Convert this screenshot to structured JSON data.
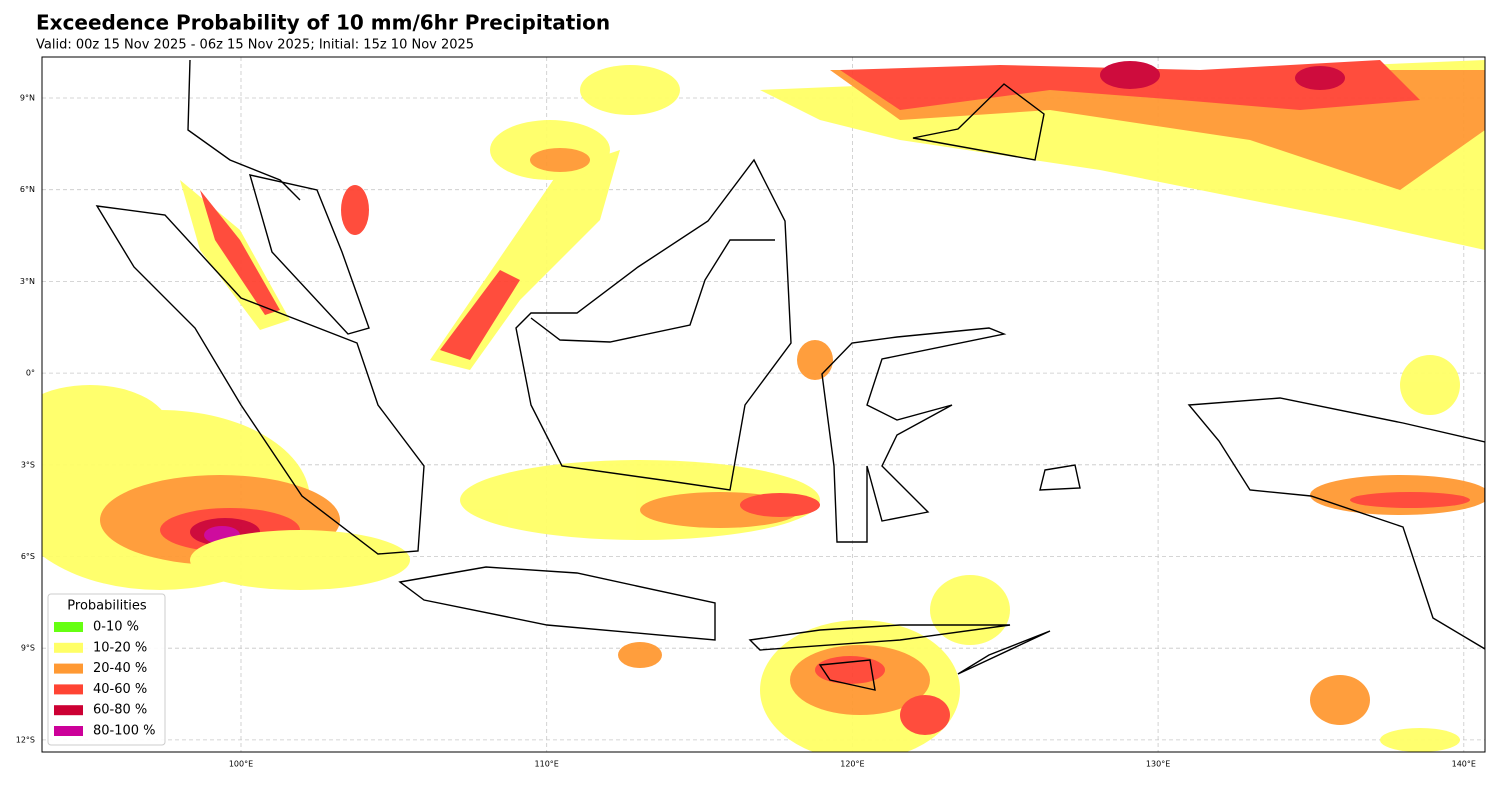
{
  "header": {
    "title": "Exceedence Probability of 10 mm/6hr Precipitation",
    "subtitle": "Valid: 00z 15 Nov 2025 - 06z 15 Nov 2025; Initial: 15z 10 Nov 2025"
  },
  "map": {
    "lat_ticks": [
      "9°N",
      "6°N",
      "3°N",
      "0°",
      "3°S",
      "6°S",
      "9°S",
      "12°S"
    ],
    "lon_ticks": [
      "100°E",
      "110°E",
      "120°E",
      "130°E",
      "140°E"
    ]
  },
  "legend": {
    "title": "Probabilities",
    "items": [
      {
        "label": "0-10 %",
        "color": "#66ff11"
      },
      {
        "label": "10-20 %",
        "color": "#ffff66"
      },
      {
        "label": "20-40 %",
        "color": "#ff9933"
      },
      {
        "label": "40-60 %",
        "color": "#ff4433"
      },
      {
        "label": "60-80 %",
        "color": "#cc0033"
      },
      {
        "label": "80-100 %",
        "color": "#cc0099"
      }
    ]
  }
}
